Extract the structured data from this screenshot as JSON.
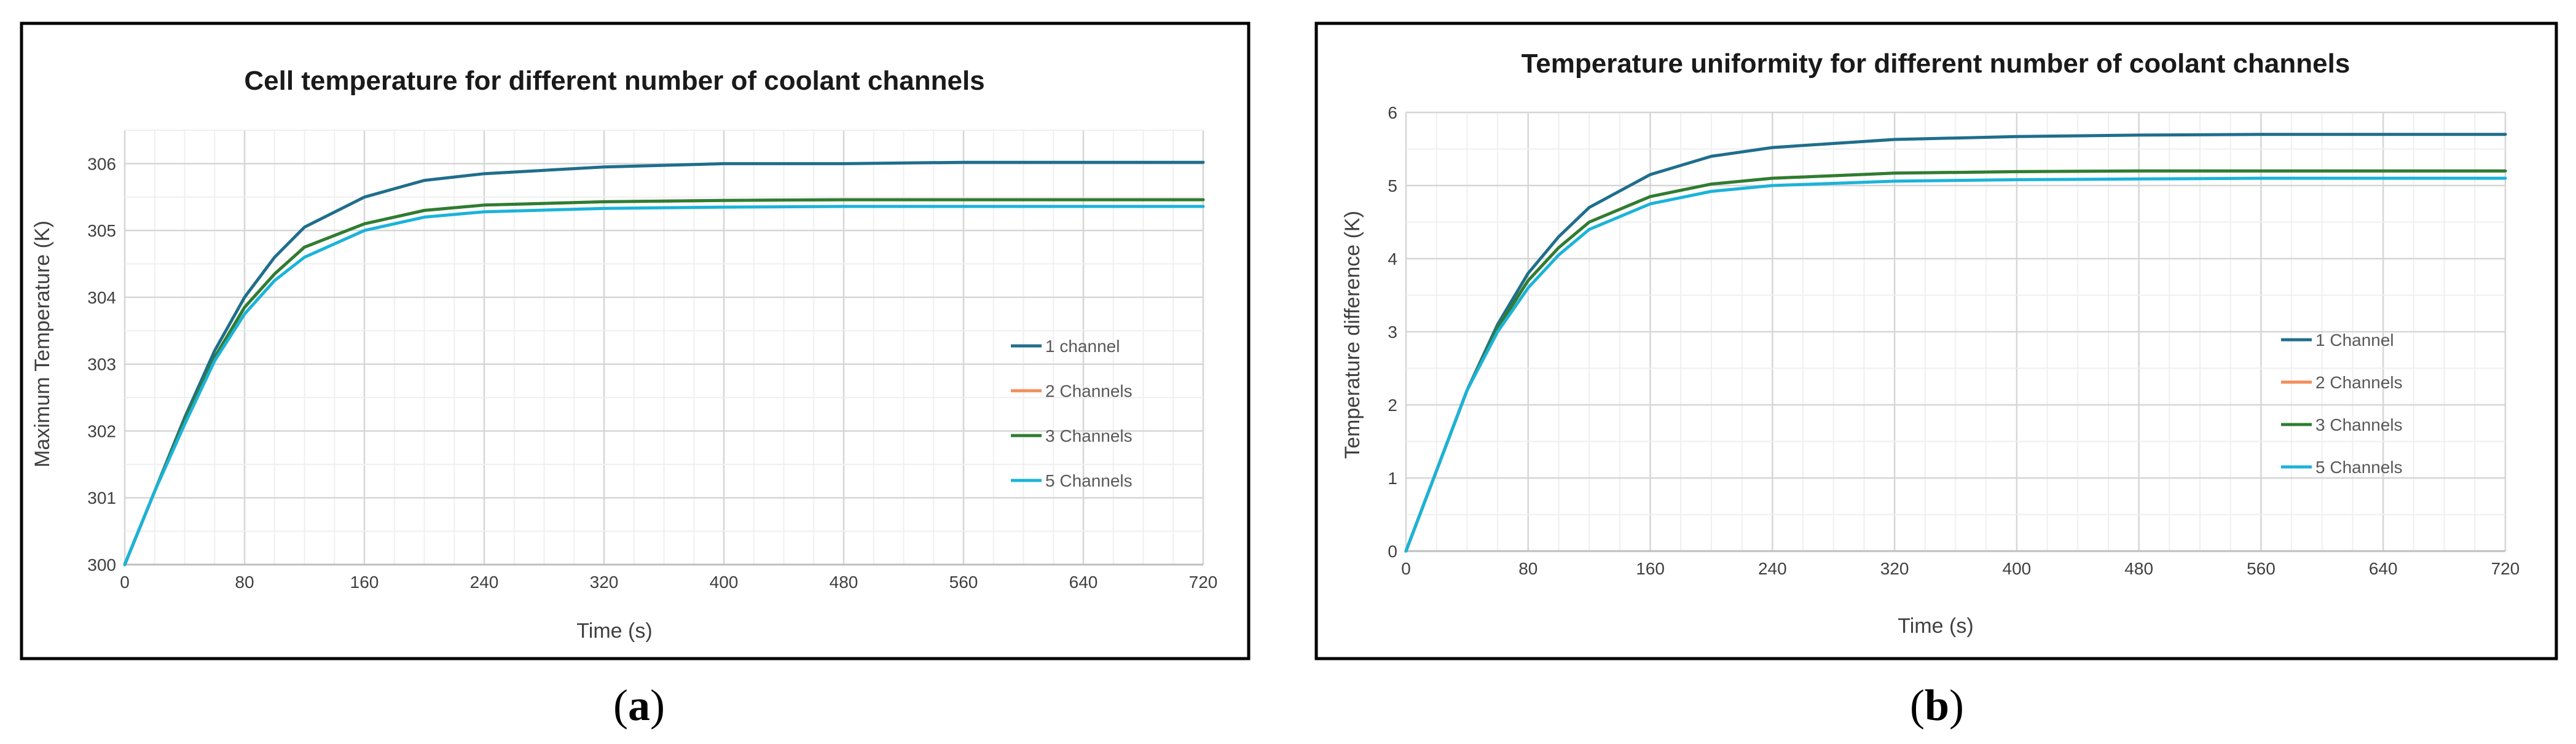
{
  "colors": {
    "1ch": "#1f6e8c",
    "2ch": "#f28e5a",
    "3ch": "#2e7d32",
    "5ch": "#1bb3d9"
  },
  "panels": [
    {
      "open": "(",
      "letter": "a",
      "close": ")"
    },
    {
      "open": "(",
      "letter": "b",
      "close": ")"
    }
  ],
  "chart_data": [
    {
      "type": "line",
      "title": "Cell temperature for different number of coolant channels",
      "xlabel": "Time (s)",
      "ylabel": "Maximum Temperature (K)",
      "xlim": [
        0,
        720
      ],
      "ylim": [
        300,
        306.5
      ],
      "xticks": [
        "0",
        "80",
        "160",
        "240",
        "320",
        "400",
        "480",
        "560",
        "640",
        "720"
      ],
      "yticks": [
        "300",
        "301",
        "302",
        "303",
        "304",
        "305",
        "306"
      ],
      "legend_position": "right",
      "series": [
        {
          "name": "1 channel",
          "color_key": "1ch",
          "x": [
            0,
            20,
            40,
            60,
            80,
            100,
            120,
            160,
            200,
            240,
            320,
            400,
            480,
            560,
            640,
            720
          ],
          "y": [
            300.0,
            301.1,
            302.2,
            303.2,
            304.0,
            304.6,
            305.05,
            305.5,
            305.75,
            305.85,
            305.95,
            306.0,
            306.0,
            306.02,
            306.02,
            306.02
          ]
        },
        {
          "name": "2 Channels",
          "color_key": "2ch",
          "x": [
            0,
            20,
            40,
            60,
            80,
            100,
            120,
            160,
            200,
            240,
            320,
            400,
            480,
            560,
            640,
            720
          ],
          "y": [
            300.0,
            301.1,
            302.15,
            303.1,
            303.85,
            304.35,
            304.75,
            305.1,
            305.3,
            305.38,
            305.43,
            305.45,
            305.46,
            305.46,
            305.46,
            305.46
          ]
        },
        {
          "name": "3 Channels",
          "color_key": "3ch",
          "x": [
            0,
            20,
            40,
            60,
            80,
            100,
            120,
            160,
            200,
            240,
            320,
            400,
            480,
            560,
            640,
            720
          ],
          "y": [
            300.0,
            301.1,
            302.15,
            303.1,
            303.85,
            304.35,
            304.75,
            305.1,
            305.3,
            305.38,
            305.43,
            305.45,
            305.46,
            305.46,
            305.46,
            305.46
          ]
        },
        {
          "name": "5 Channels",
          "color_key": "5ch",
          "x": [
            0,
            20,
            40,
            60,
            80,
            100,
            120,
            160,
            200,
            240,
            320,
            400,
            480,
            560,
            640,
            720
          ],
          "y": [
            300.0,
            301.1,
            302.1,
            303.05,
            303.75,
            304.25,
            304.6,
            305.0,
            305.2,
            305.28,
            305.33,
            305.35,
            305.36,
            305.36,
            305.36,
            305.36
          ]
        }
      ]
    },
    {
      "type": "line",
      "title": "Temperature uniformity for different number of coolant channels",
      "xlabel": "Time (s)",
      "ylabel": "Temperature difference (K)",
      "xlim": [
        0,
        720
      ],
      "ylim": [
        0,
        6
      ],
      "xticks": [
        "0",
        "80",
        "160",
        "240",
        "320",
        "400",
        "480",
        "560",
        "640",
        "720"
      ],
      "yticks": [
        "0",
        "1",
        "2",
        "3",
        "4",
        "5",
        "6"
      ],
      "legend_position": "right",
      "series": [
        {
          "name": "1 Channel",
          "color_key": "1ch",
          "x": [
            0,
            20,
            40,
            60,
            80,
            100,
            120,
            160,
            200,
            240,
            320,
            400,
            480,
            560,
            640,
            720
          ],
          "y": [
            0.0,
            1.1,
            2.2,
            3.1,
            3.8,
            4.3,
            4.7,
            5.15,
            5.4,
            5.52,
            5.63,
            5.67,
            5.69,
            5.7,
            5.7,
            5.7
          ]
        },
        {
          "name": "2 Channels",
          "color_key": "2ch",
          "x": [
            0,
            20,
            40,
            60,
            80,
            100,
            120,
            160,
            200,
            240,
            320,
            400,
            480,
            560,
            640,
            720
          ],
          "y": [
            0.0,
            1.1,
            2.2,
            3.05,
            3.7,
            4.15,
            4.5,
            4.85,
            5.02,
            5.1,
            5.17,
            5.19,
            5.2,
            5.2,
            5.2,
            5.2
          ]
        },
        {
          "name": "3 Channels",
          "color_key": "3ch",
          "x": [
            0,
            20,
            40,
            60,
            80,
            100,
            120,
            160,
            200,
            240,
            320,
            400,
            480,
            560,
            640,
            720
          ],
          "y": [
            0.0,
            1.1,
            2.2,
            3.05,
            3.7,
            4.15,
            4.5,
            4.85,
            5.02,
            5.1,
            5.17,
            5.19,
            5.2,
            5.2,
            5.2,
            5.2
          ]
        },
        {
          "name": "5 Channels",
          "color_key": "5ch",
          "x": [
            0,
            20,
            40,
            60,
            80,
            100,
            120,
            160,
            200,
            240,
            320,
            400,
            480,
            560,
            640,
            720
          ],
          "y": [
            0.0,
            1.1,
            2.2,
            3.0,
            3.6,
            4.05,
            4.4,
            4.75,
            4.92,
            5.0,
            5.06,
            5.08,
            5.09,
            5.1,
            5.1,
            5.1
          ]
        }
      ]
    }
  ]
}
